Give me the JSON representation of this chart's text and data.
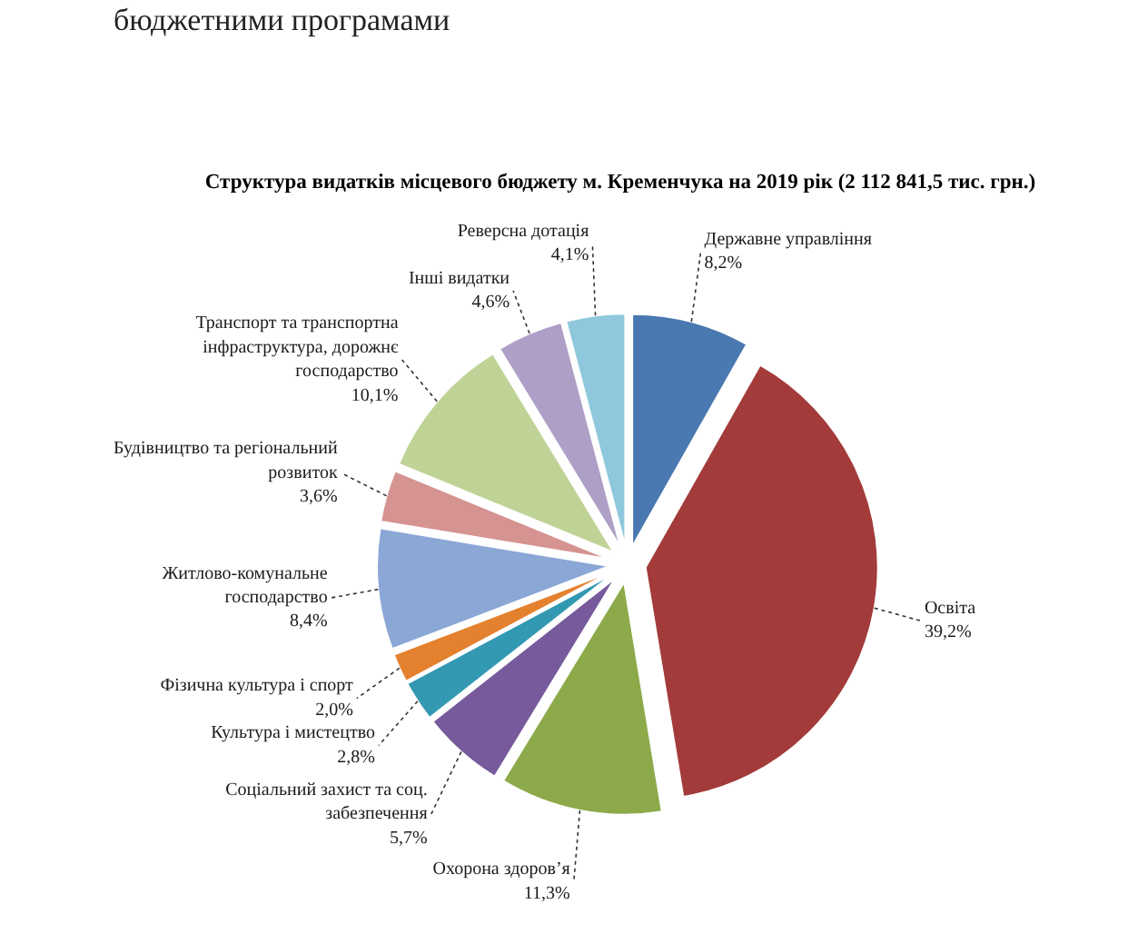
{
  "chart_data": {
    "type": "pie",
    "title": "Структура видатків місцевого бюджету м. Кременчука на 2019 рік (2 112 841,5 тис. грн.)",
    "categories": [
      "Державне управління",
      "Освіта",
      "Охорона здоров’я",
      "Соціальний захист та соц. забезпечення",
      "Культура і мистецтво",
      "Фізична культура і спорт",
      "Житлово-комунальне господарство",
      "Будівництво та регіональний розвиток",
      "Транспорт та транспортна інфраструктура, дорожнє господарство",
      "Інші видатки",
      "Реверсна дотація"
    ],
    "values": [
      8.2,
      39.2,
      11.3,
      5.7,
      2.8,
      2.0,
      8.4,
      3.6,
      10.1,
      4.6,
      4.1
    ],
    "colors": [
      "#4a78b0",
      "#a23b3a",
      "#8caa4a",
      "#765a9b",
      "#3399b3",
      "#e4812f",
      "#8aa7d6",
      "#d59391",
      "#c0d396",
      "#ae9fc6",
      "#8fc8dc"
    ],
    "value_labels": [
      "8,2%",
      "39,2%",
      "11,3%",
      "5,7%",
      "2,8%",
      "2,0%",
      "8,4%",
      "3,6%",
      "10,1%",
      "4,6%",
      "4,1%"
    ],
    "annotations": [
      "бюджетними програмами"
    ]
  }
}
